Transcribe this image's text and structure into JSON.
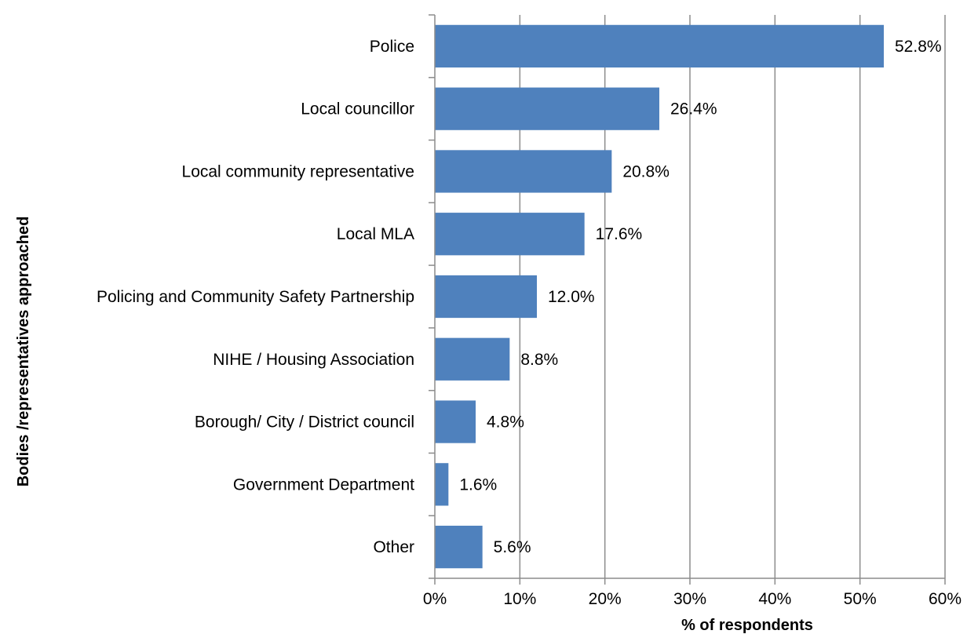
{
  "chart_data": {
    "type": "bar",
    "orientation": "horizontal",
    "categories": [
      "Police",
      "Local councillor",
      "Local community representative",
      "Local MLA",
      "Policing and Community Safety Partnership",
      "NIHE / Housing Association",
      "Borough/ City / District council",
      "Government Department",
      "Other"
    ],
    "values": [
      52.8,
      26.4,
      20.8,
      17.6,
      12.0,
      8.8,
      4.8,
      1.6,
      5.6
    ],
    "data_labels": [
      "52.8%",
      "26.4%",
      "20.8%",
      "17.6%",
      "12.0%",
      "8.8%",
      "4.8%",
      "1.6%",
      "5.6%"
    ],
    "xlabel": "% of respondents",
    "ylabel": "Bodies /representatives approached",
    "xlim": [
      0,
      60
    ],
    "x_ticks": [
      0,
      10,
      20,
      30,
      40,
      50,
      60
    ],
    "x_tick_labels": [
      "0%",
      "10%",
      "20%",
      "30%",
      "40%",
      "50%",
      "60%"
    ],
    "bar_color": "#4f81bd",
    "grid": "vertical",
    "legend": "none"
  }
}
